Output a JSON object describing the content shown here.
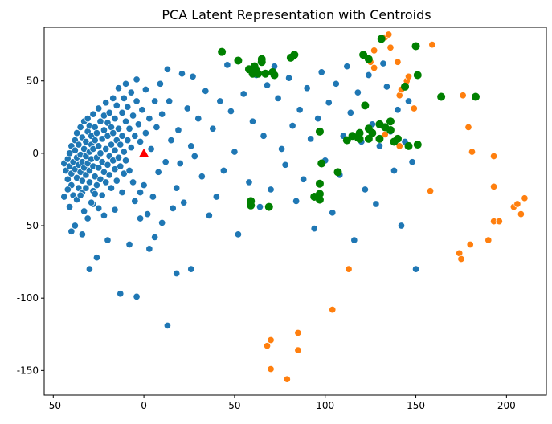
{
  "chart_data": {
    "type": "scatter",
    "title": "PCA Latent Representation with Centroids",
    "xlabel": "",
    "ylabel": "",
    "xlim": [
      -55,
      222
    ],
    "ylim": [
      -167,
      87
    ],
    "xticks": [
      -50,
      0,
      50,
      100,
      150,
      200
    ],
    "yticks": [
      -150,
      -100,
      -50,
      0,
      50
    ],
    "grid": false,
    "colors": {
      "blue": "#1f77b4",
      "orange": "#ff7f0e",
      "green": "#008000",
      "red": "#ff0000"
    },
    "series": [
      {
        "color": "#1f77b4",
        "marker": "circle",
        "points": [
          [
            -44,
            -7
          ],
          [
            -43,
            -12
          ],
          [
            -42,
            -4
          ],
          [
            -42,
            -18
          ],
          [
            -41,
            -9
          ],
          [
            -41,
            0
          ],
          [
            -40,
            5
          ],
          [
            -40,
            -14
          ],
          [
            -40,
            -22
          ],
          [
            -39,
            -6
          ],
          [
            -39,
            -29
          ],
          [
            -38,
            2
          ],
          [
            -38,
            -11
          ],
          [
            -38,
            9
          ],
          [
            -37,
            -17
          ],
          [
            -37,
            -3
          ],
          [
            -37,
            14
          ],
          [
            -36,
            -8
          ],
          [
            -36,
            -24
          ],
          [
            -36,
            6
          ],
          [
            -35,
            -13
          ],
          [
            -35,
            -1
          ],
          [
            -35,
            18
          ],
          [
            -34,
            -19
          ],
          [
            -34,
            -6
          ],
          [
            -34,
            11
          ],
          [
            -34,
            -27
          ],
          [
            -33,
            3
          ],
          [
            -33,
            -10
          ],
          [
            -33,
            22
          ],
          [
            -32,
            -15
          ],
          [
            -32,
            -2
          ],
          [
            -32,
            8
          ],
          [
            -32,
            -24
          ],
          [
            -31,
            15
          ],
          [
            -31,
            -7
          ],
          [
            -31,
            24
          ],
          [
            -30,
            -12
          ],
          [
            -30,
            1
          ],
          [
            -30,
            -20
          ],
          [
            -30,
            19
          ],
          [
            -29,
            6
          ],
          [
            -29,
            -4
          ],
          [
            -29,
            12
          ],
          [
            -28,
            -9
          ],
          [
            -28,
            27
          ],
          [
            -28,
            -26
          ],
          [
            -28,
            3
          ],
          [
            -27,
            -16
          ],
          [
            -27,
            9
          ],
          [
            -27,
            18
          ],
          [
            -26,
            -3
          ],
          [
            -26,
            -22
          ],
          [
            -26,
            14
          ],
          [
            -25,
            5
          ],
          [
            -25,
            -10
          ],
          [
            -25,
            31
          ],
          [
            -24,
            -18
          ],
          [
            -24,
            22
          ],
          [
            -24,
            0
          ],
          [
            -23,
            -6
          ],
          [
            -23,
            10
          ],
          [
            -23,
            -29
          ],
          [
            -22,
            16
          ],
          [
            -22,
            -13
          ],
          [
            -22,
            26
          ],
          [
            -21,
            3
          ],
          [
            -21,
            -20
          ],
          [
            -21,
            35
          ],
          [
            -20,
            -8
          ],
          [
            -20,
            12
          ],
          [
            -20,
            21
          ],
          [
            -19,
            -2
          ],
          [
            -19,
            -15
          ],
          [
            -19,
            28
          ],
          [
            -18,
            6
          ],
          [
            -18,
            18
          ],
          [
            -18,
            -24
          ],
          [
            -17,
            38
          ],
          [
            -17,
            -5
          ],
          [
            -17,
            14
          ],
          [
            -16,
            2
          ],
          [
            -16,
            -11
          ],
          [
            -16,
            24
          ],
          [
            -15,
            9
          ],
          [
            -15,
            33
          ],
          [
            -15,
            -19
          ],
          [
            -14,
            -3
          ],
          [
            -14,
            17
          ],
          [
            -14,
            45
          ],
          [
            -13,
            6
          ],
          [
            -13,
            -9
          ],
          [
            -12,
            28
          ],
          [
            -12,
            12
          ],
          [
            -12,
            -27
          ],
          [
            -11,
            38
          ],
          [
            -11,
            1
          ],
          [
            -11,
            -14
          ],
          [
            -10,
            22
          ],
          [
            -10,
            48
          ],
          [
            -10,
            -5
          ],
          [
            -9,
            9
          ],
          [
            -9,
            32
          ],
          [
            -8,
            -12
          ],
          [
            -8,
            17
          ],
          [
            -7,
            42
          ],
          [
            -7,
            4
          ],
          [
            -6,
            26
          ],
          [
            -6,
            -20
          ],
          [
            -5,
            12
          ],
          [
            -5,
            -33
          ],
          [
            -4,
            36
          ],
          [
            -4,
            51
          ],
          [
            -3,
            20
          ],
          [
            -2,
            8
          ],
          [
            -2,
            -27
          ],
          [
            -1,
            30
          ],
          [
            0,
            -22
          ],
          [
            1,
            44
          ],
          [
            1,
            14
          ],
          [
            2,
            -42
          ],
          [
            3,
            24
          ],
          [
            4,
            3
          ],
          [
            5,
            -30
          ],
          [
            6,
            36
          ],
          [
            7,
            18
          ],
          [
            8,
            -13
          ],
          [
            9,
            48
          ],
          [
            10,
            -48
          ],
          [
            10,
            27
          ],
          [
            12,
            -6
          ],
          [
            13,
            58
          ],
          [
            14,
            36
          ],
          [
            15,
            9
          ],
          [
            16,
            -38
          ],
          [
            18,
            -24
          ],
          [
            19,
            16
          ],
          [
            20,
            -7
          ],
          [
            21,
            55
          ],
          [
            22,
            -34
          ],
          [
            24,
            31
          ],
          [
            26,
            5
          ],
          [
            27,
            53
          ],
          [
            28,
            -2
          ],
          [
            30,
            24
          ],
          [
            32,
            -16
          ],
          [
            34,
            43
          ],
          [
            36,
            -43
          ],
          [
            38,
            17
          ],
          [
            40,
            -30
          ],
          [
            42,
            36
          ],
          [
            44,
            -12
          ],
          [
            46,
            61
          ],
          [
            48,
            29
          ],
          [
            50,
            1
          ],
          [
            52,
            -56
          ],
          [
            55,
            41
          ],
          [
            58,
            -20
          ],
          [
            60,
            22
          ],
          [
            62,
            54
          ],
          [
            64,
            -37
          ],
          [
            66,
            12
          ],
          [
            68,
            47
          ],
          [
            70,
            -25
          ],
          [
            72,
            60
          ],
          [
            74,
            38
          ],
          [
            76,
            3
          ],
          [
            78,
            -8
          ],
          [
            80,
            52
          ],
          [
            82,
            19
          ],
          [
            84,
            -33
          ],
          [
            86,
            30
          ],
          [
            88,
            -18
          ],
          [
            90,
            45
          ],
          [
            92,
            10
          ],
          [
            94,
            -52
          ],
          [
            96,
            24
          ],
          [
            98,
            56
          ],
          [
            100,
            -5
          ],
          [
            102,
            35
          ],
          [
            104,
            -41
          ],
          [
            106,
            48
          ],
          [
            108,
            -15
          ],
          [
            110,
            12
          ],
          [
            112,
            60
          ],
          [
            114,
            28
          ],
          [
            116,
            -60
          ],
          [
            118,
            42
          ],
          [
            120,
            8
          ],
          [
            122,
            -25
          ],
          [
            124,
            54
          ],
          [
            126,
            20
          ],
          [
            128,
            -35
          ],
          [
            130,
            5
          ],
          [
            132,
            62
          ],
          [
            134,
            46
          ],
          [
            136,
            15
          ],
          [
            138,
            -12
          ],
          [
            140,
            30
          ],
          [
            142,
            -50
          ],
          [
            144,
            8
          ],
          [
            146,
            36
          ],
          [
            148,
            -6
          ],
          [
            150,
            -80
          ],
          [
            18,
            -83
          ],
          [
            -40,
            -54
          ],
          [
            -30,
            -80
          ],
          [
            -26,
            -72
          ],
          [
            -38,
            -50
          ],
          [
            -20,
            -60
          ],
          [
            -13,
            -97
          ],
          [
            -4,
            -99
          ],
          [
            13,
            -119
          ],
          [
            26,
            -80
          ],
          [
            -34,
            -56
          ],
          [
            -28,
            -35
          ],
          [
            -22,
            -43
          ],
          [
            -16,
            -39
          ],
          [
            -8,
            -63
          ],
          [
            -2,
            -45
          ],
          [
            3,
            -66
          ],
          [
            6,
            -58
          ],
          [
            -44,
            -30
          ],
          [
            -42,
            -25
          ],
          [
            -41,
            -37
          ],
          [
            -37,
            -32
          ],
          [
            -35,
            -29
          ],
          [
            -33,
            -40
          ],
          [
            -31,
            -45
          ],
          [
            -29,
            -34
          ],
          [
            -27,
            -28
          ],
          [
            -25,
            -38
          ]
        ]
      },
      {
        "color": "#ff7f0e",
        "marker": "circle",
        "points": [
          [
            70,
            -149
          ],
          [
            79,
            -156
          ],
          [
            68,
            -133
          ],
          [
            70,
            -129
          ],
          [
            85,
            -124
          ],
          [
            85,
            -136
          ],
          [
            104,
            -108
          ],
          [
            113,
            -80
          ],
          [
            133,
            80
          ],
          [
            135,
            82
          ],
          [
            136,
            73
          ],
          [
            127,
            71
          ],
          [
            125,
            63
          ],
          [
            127,
            59
          ],
          [
            140,
            63
          ],
          [
            145,
            50
          ],
          [
            141,
            40
          ],
          [
            142,
            44
          ],
          [
            149,
            31
          ],
          [
            146,
            53
          ],
          [
            159,
            75
          ],
          [
            176,
            40
          ],
          [
            179,
            18
          ],
          [
            181,
            1
          ],
          [
            193,
            -2
          ],
          [
            193,
            -23
          ],
          [
            158,
            -26
          ],
          [
            174,
            -69
          ],
          [
            175,
            -73
          ],
          [
            180,
            -63
          ],
          [
            190,
            -60
          ],
          [
            193,
            -47
          ],
          [
            196,
            -47
          ],
          [
            204,
            -37
          ],
          [
            206,
            -35
          ],
          [
            208,
            -42
          ],
          [
            210,
            -31
          ],
          [
            141,
            5
          ],
          [
            133,
            13
          ]
        ]
      },
      {
        "color": "#008000",
        "marker": "circle",
        "points": [
          [
            43,
            70
          ],
          [
            52,
            64
          ],
          [
            58,
            58
          ],
          [
            60,
            55
          ],
          [
            61,
            60
          ],
          [
            62,
            57
          ],
          [
            63,
            55
          ],
          [
            65,
            63
          ],
          [
            65,
            65
          ],
          [
            67,
            55
          ],
          [
            71,
            56
          ],
          [
            72,
            54
          ],
          [
            81,
            66
          ],
          [
            83,
            68
          ],
          [
            59,
            -33
          ],
          [
            59,
            -36
          ],
          [
            69,
            -37
          ],
          [
            94,
            -30
          ],
          [
            97,
            -28
          ],
          [
            97,
            -32
          ],
          [
            97,
            -21
          ],
          [
            98,
            -7
          ],
          [
            97,
            15
          ],
          [
            107,
            -13
          ],
          [
            121,
            68
          ],
          [
            122,
            33
          ],
          [
            124,
            65
          ],
          [
            124,
            17
          ],
          [
            124,
            10
          ],
          [
            119,
            10
          ],
          [
            119,
            14
          ],
          [
            130,
            20
          ],
          [
            131,
            79
          ],
          [
            133,
            18
          ],
          [
            136,
            16
          ],
          [
            136,
            22
          ],
          [
            138,
            8
          ],
          [
            144,
            46
          ],
          [
            146,
            5
          ],
          [
            150,
            74
          ],
          [
            151,
            6
          ],
          [
            151,
            54
          ],
          [
            164,
            39
          ],
          [
            183,
            39
          ],
          [
            112,
            9
          ],
          [
            115,
            12
          ],
          [
            118,
            11
          ],
          [
            126,
            14
          ],
          [
            130,
            10
          ],
          [
            140,
            10
          ]
        ]
      },
      {
        "color": "#ff0000",
        "marker": "triangle",
        "points": [
          [
            0,
            0
          ]
        ]
      }
    ]
  }
}
